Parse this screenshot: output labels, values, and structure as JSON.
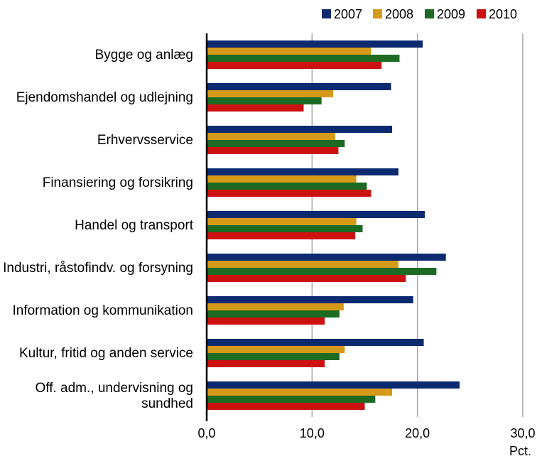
{
  "chart_data": {
    "type": "bar",
    "orientation": "horizontal",
    "categories": [
      [
        "Bygge og anlæg"
      ],
      [
        "Ejendomshandel og udlejning"
      ],
      [
        "Erhvervsservice"
      ],
      [
        "Finansiering og forsikring"
      ],
      [
        "Handel og transport"
      ],
      [
        "Industri, råstofindv. og forsyning"
      ],
      [
        "Information og kommunikation"
      ],
      [
        "Kultur, fritid og anden service"
      ],
      [
        "Off. adm., undervisning og",
        "sundhed"
      ]
    ],
    "series": [
      {
        "name": "2007",
        "color": "#0b2a6f",
        "values": [
          20.5,
          17.5,
          17.6,
          18.2,
          20.7,
          22.7,
          19.6,
          20.6,
          24.0
        ]
      },
      {
        "name": "2008",
        "color": "#d69a1b",
        "values": [
          15.6,
          12.0,
          12.2,
          14.2,
          14.2,
          18.2,
          13.0,
          13.1,
          17.6
        ]
      },
      {
        "name": "2009",
        "color": "#1d6b22",
        "values": [
          18.3,
          10.9,
          13.1,
          15.2,
          14.8,
          21.8,
          12.6,
          12.6,
          16.0
        ]
      },
      {
        "name": "2010",
        "color": "#cc1111",
        "values": [
          16.6,
          9.2,
          12.5,
          15.6,
          14.1,
          18.9,
          11.2,
          11.2,
          15.0
        ]
      }
    ],
    "x_ticks": [
      "0,0",
      "10,0",
      "20,0",
      "30,0"
    ],
    "xlim": [
      0,
      30
    ],
    "xlabel": "Pct.",
    "legend_position": "top-right",
    "grid": "vertical"
  }
}
